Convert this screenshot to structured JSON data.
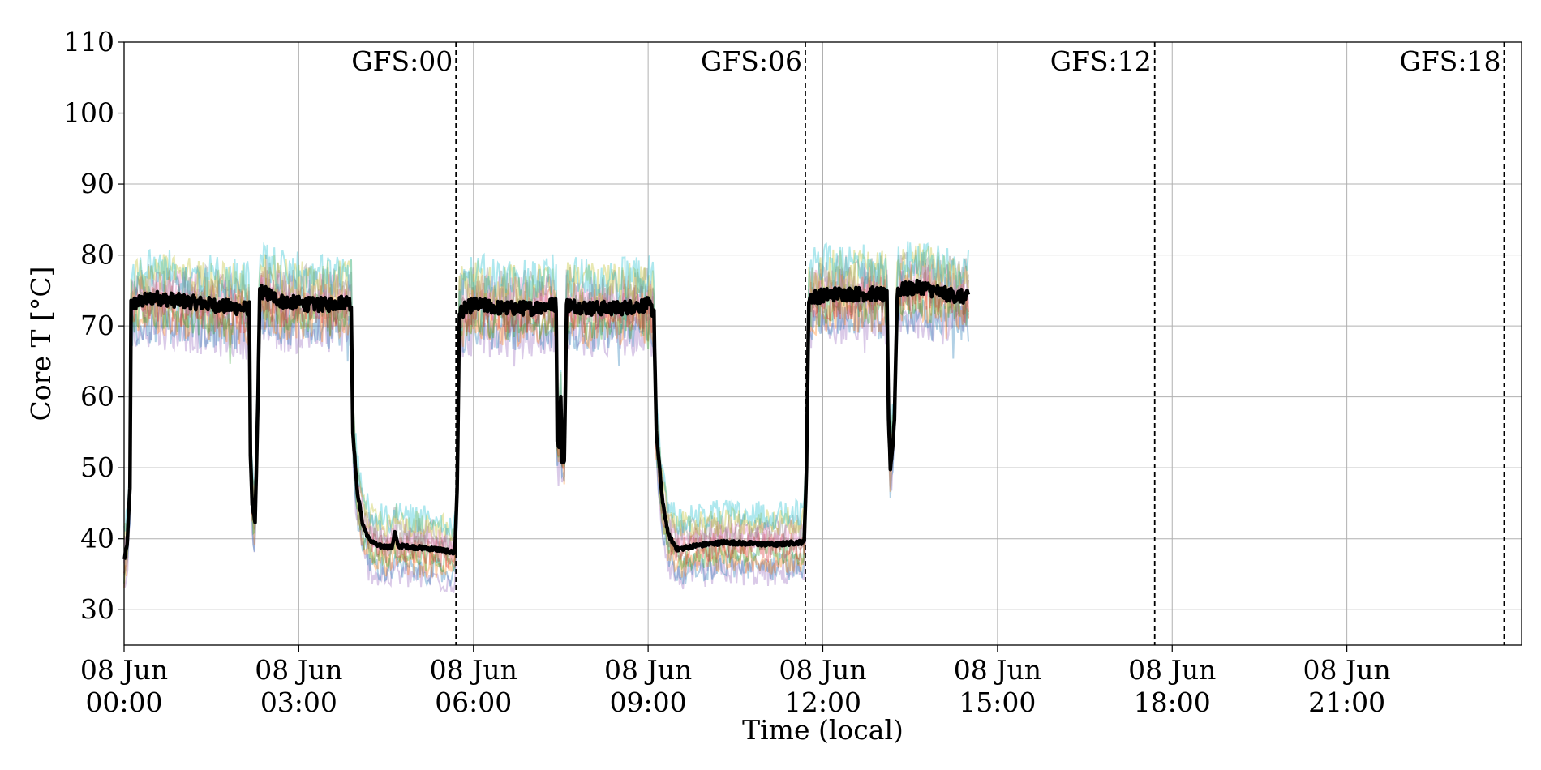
{
  "chart_data": {
    "type": "line",
    "title": "",
    "xlabel": "Time (local)",
    "ylabel": "Core T [°C]",
    "ylim": [
      25,
      110
    ],
    "xlim_hours": [
      0,
      24
    ],
    "grid": true,
    "y_ticks": [
      "30",
      "40",
      "50",
      "60",
      "70",
      "80",
      "90",
      "100",
      "110"
    ],
    "x_ticks": [
      {
        "date": "08 Jun",
        "time": "00:00",
        "hour": 0
      },
      {
        "date": "08 Jun",
        "time": "03:00",
        "hour": 3
      },
      {
        "date": "08 Jun",
        "time": "06:00",
        "hour": 6
      },
      {
        "date": "08 Jun",
        "time": "09:00",
        "hour": 9
      },
      {
        "date": "08 Jun",
        "time": "12:00",
        "hour": 12
      },
      {
        "date": "08 Jun",
        "time": "15:00",
        "hour": 15
      },
      {
        "date": "08 Jun",
        "time": "18:00",
        "hour": 18
      },
      {
        "date": "08 Jun",
        "time": "21:00",
        "hour": 21
      }
    ],
    "vlines": [
      {
        "label": "GFS:00",
        "hour": 5.7
      },
      {
        "label": "GFS:06",
        "hour": 11.7
      },
      {
        "label": "GFS:12",
        "hour": 17.7
      },
      {
        "label": "GFS:18",
        "hour": 23.7
      }
    ],
    "mean_series": {
      "name": "",
      "color": "#000000",
      "points": [
        [
          0.0,
          37
        ],
        [
          0.05,
          39
        ],
        [
          0.1,
          47
        ],
        [
          0.12,
          73
        ],
        [
          0.5,
          74
        ],
        [
          1.0,
          73.5
        ],
        [
          1.5,
          73
        ],
        [
          2.0,
          72.5
        ],
        [
          2.15,
          72.5
        ],
        [
          2.17,
          52
        ],
        [
          2.2,
          45
        ],
        [
          2.25,
          42
        ],
        [
          2.3,
          60
        ],
        [
          2.33,
          75
        ],
        [
          2.7,
          73.5
        ],
        [
          3.2,
          73
        ],
        [
          3.5,
          73
        ],
        [
          3.85,
          73.5
        ],
        [
          3.9,
          73
        ],
        [
          3.93,
          55
        ],
        [
          4.0,
          47
        ],
        [
          4.1,
          42
        ],
        [
          4.2,
          40
        ],
        [
          4.35,
          39
        ],
        [
          4.6,
          38.8
        ],
        [
          4.65,
          41
        ],
        [
          4.7,
          39
        ],
        [
          5.0,
          38.8
        ],
        [
          5.4,
          38.5
        ],
        [
          5.68,
          38
        ],
        [
          5.72,
          47
        ],
        [
          5.76,
          72
        ],
        [
          6.0,
          73
        ],
        [
          6.5,
          72.5
        ],
        [
          7.0,
          72.5
        ],
        [
          7.35,
          73
        ],
        [
          7.42,
          73
        ],
        [
          7.44,
          54
        ],
        [
          7.47,
          53
        ],
        [
          7.5,
          60
        ],
        [
          7.52,
          51
        ],
        [
          7.56,
          51
        ],
        [
          7.6,
          73
        ],
        [
          8.0,
          72.5
        ],
        [
          8.5,
          72.5
        ],
        [
          9.0,
          73
        ],
        [
          9.1,
          72
        ],
        [
          9.14,
          55
        ],
        [
          9.25,
          45
        ],
        [
          9.35,
          40.5
        ],
        [
          9.5,
          38.5
        ],
        [
          9.8,
          39
        ],
        [
          10.3,
          39.5
        ],
        [
          10.8,
          39.3
        ],
        [
          11.2,
          39.2
        ],
        [
          11.6,
          39.5
        ],
        [
          11.68,
          39.5
        ],
        [
          11.72,
          50
        ],
        [
          11.76,
          74
        ],
        [
          12.2,
          74.5
        ],
        [
          12.6,
          74.5
        ],
        [
          13.0,
          74.5
        ],
        [
          13.1,
          74
        ],
        [
          13.13,
          57
        ],
        [
          13.16,
          50
        ],
        [
          13.2,
          53
        ],
        [
          13.23,
          57
        ],
        [
          13.28,
          75
        ],
        [
          13.7,
          75.5
        ],
        [
          14.1,
          74.5
        ],
        [
          14.5,
          74
        ]
      ]
    },
    "sensor_colors": [
      "#9467bd",
      "#1f77b4",
      "#ff7f0e",
      "#2ca02c",
      "#d62728",
      "#8c564b",
      "#e377c2",
      "#7f7f7f",
      "#bcbd22",
      "#17becf"
    ]
  }
}
